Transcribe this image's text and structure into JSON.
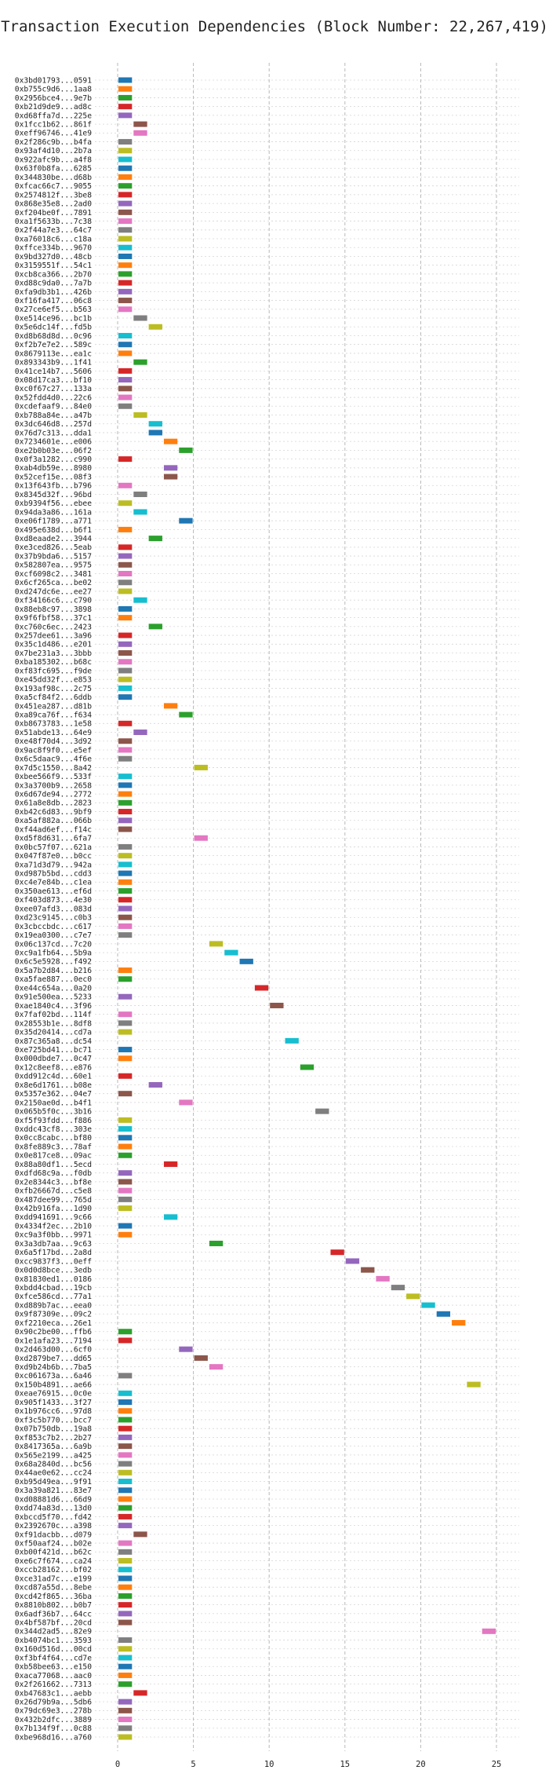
{
  "chart_data": {
    "type": "bar",
    "orientation": "horizontal-gantt",
    "title": "Transaction Execution Dependencies (Block Number: 22,267,419)",
    "xlabel": "",
    "ylabel": "",
    "xlim": [
      -1.5,
      26.5
    ],
    "x_ticks": [
      0,
      5,
      10,
      15,
      20,
      25
    ],
    "grid": true,
    "bar_width": 1,
    "transactions": [
      {
        "label": "0x3bd01793...0591",
        "start": 0,
        "color": "#1f77b4"
      },
      {
        "label": "0xb755c9d6...1aa8",
        "start": 0,
        "color": "#ff7f0e"
      },
      {
        "label": "0x2956bce4...9e7b",
        "start": 0,
        "color": "#2ca02c"
      },
      {
        "label": "0xb21d9de9...ad8c",
        "start": 0,
        "color": "#d62728"
      },
      {
        "label": "0xd68ffa7d...225e",
        "start": 0,
        "color": "#9467bd"
      },
      {
        "label": "0x1fcc1b62...861f",
        "start": 1,
        "color": "#8c564b"
      },
      {
        "label": "0xeff96746...41e9",
        "start": 1,
        "color": "#e377c2"
      },
      {
        "label": "0x2f286c9b...b4fa",
        "start": 0,
        "color": "#7f7f7f"
      },
      {
        "label": "0x93af4d10...2b7a",
        "start": 0,
        "color": "#bcbd22"
      },
      {
        "label": "0x922afc9b...a4f8",
        "start": 0,
        "color": "#17becf"
      },
      {
        "label": "0x63f0b8fa...6285",
        "start": 0,
        "color": "#1f77b4"
      },
      {
        "label": "0x344830be...d68b",
        "start": 0,
        "color": "#ff7f0e"
      },
      {
        "label": "0xfcac66c7...9055",
        "start": 0,
        "color": "#2ca02c"
      },
      {
        "label": "0x2574812f...3be8",
        "start": 0,
        "color": "#d62728"
      },
      {
        "label": "0x868e35e8...2ad0",
        "start": 0,
        "color": "#9467bd"
      },
      {
        "label": "0xf204be0f...7891",
        "start": 0,
        "color": "#8c564b"
      },
      {
        "label": "0xa1f5633b...7c38",
        "start": 0,
        "color": "#e377c2"
      },
      {
        "label": "0x2f44a7e3...64c7",
        "start": 0,
        "color": "#7f7f7f"
      },
      {
        "label": "0xa76018c6...c18a",
        "start": 0,
        "color": "#bcbd22"
      },
      {
        "label": "0xffce334b...9670",
        "start": 0,
        "color": "#17becf"
      },
      {
        "label": "0x9bd327d0...48cb",
        "start": 0,
        "color": "#1f77b4"
      },
      {
        "label": "0x3159551f...54c1",
        "start": 0,
        "color": "#ff7f0e"
      },
      {
        "label": "0xcb8ca366...2b70",
        "start": 0,
        "color": "#2ca02c"
      },
      {
        "label": "0xd88c9da0...7a7b",
        "start": 0,
        "color": "#d62728"
      },
      {
        "label": "0xfa9db3b1...426b",
        "start": 0,
        "color": "#9467bd"
      },
      {
        "label": "0xf16fa417...06c8",
        "start": 0,
        "color": "#8c564b"
      },
      {
        "label": "0x27ce6ef5...b563",
        "start": 0,
        "color": "#e377c2"
      },
      {
        "label": "0xe514ce96...bc1b",
        "start": 1,
        "color": "#7f7f7f"
      },
      {
        "label": "0x5e6dc14f...fd5b",
        "start": 2,
        "color": "#bcbd22"
      },
      {
        "label": "0xd8b68d8d...0c96",
        "start": 0,
        "color": "#17becf"
      },
      {
        "label": "0xf2b7e7e2...589c",
        "start": 0,
        "color": "#1f77b4"
      },
      {
        "label": "0x8679113e...ea1c",
        "start": 0,
        "color": "#ff7f0e"
      },
      {
        "label": "0x893343b9...1f41",
        "start": 1,
        "color": "#2ca02c"
      },
      {
        "label": "0x41ce14b7...5606",
        "start": 0,
        "color": "#d62728"
      },
      {
        "label": "0x08d17ca3...bf10",
        "start": 0,
        "color": "#9467bd"
      },
      {
        "label": "0xc0f67c27...133a",
        "start": 0,
        "color": "#8c564b"
      },
      {
        "label": "0x52fdd4d0...22c6",
        "start": 0,
        "color": "#e377c2"
      },
      {
        "label": "0xcdefaaf9...84e0",
        "start": 0,
        "color": "#7f7f7f"
      },
      {
        "label": "0xb788a84e...a47b",
        "start": 1,
        "color": "#bcbd22"
      },
      {
        "label": "0x3dc646d8...257d",
        "start": 2,
        "color": "#17becf"
      },
      {
        "label": "0x76d7c313...dda1",
        "start": 2,
        "color": "#1f77b4"
      },
      {
        "label": "0x7234601e...e006",
        "start": 3,
        "color": "#ff7f0e"
      },
      {
        "label": "0xe2b0b03e...06f2",
        "start": 4,
        "color": "#2ca02c"
      },
      {
        "label": "0x0f3a1282...c990",
        "start": 0,
        "color": "#d62728"
      },
      {
        "label": "0xab4db59e...8980",
        "start": 3,
        "color": "#9467bd"
      },
      {
        "label": "0x52cef15e...08f3",
        "start": 3,
        "color": "#8c564b"
      },
      {
        "label": "0x13f643fb...b796",
        "start": 0,
        "color": "#e377c2"
      },
      {
        "label": "0x8345d32f...96bd",
        "start": 1,
        "color": "#7f7f7f"
      },
      {
        "label": "0xb9394f56...ebee",
        "start": 0,
        "color": "#bcbd22"
      },
      {
        "label": "0x94da3a86...161a",
        "start": 1,
        "color": "#17becf"
      },
      {
        "label": "0xe06f1789...a771",
        "start": 4,
        "color": "#1f77b4"
      },
      {
        "label": "0x495e638d...b6f1",
        "start": 0,
        "color": "#ff7f0e"
      },
      {
        "label": "0xd8eaade2...3944",
        "start": 2,
        "color": "#2ca02c"
      },
      {
        "label": "0xe3ced826...5eab",
        "start": 0,
        "color": "#d62728"
      },
      {
        "label": "0x37b9bda6...5157",
        "start": 0,
        "color": "#9467bd"
      },
      {
        "label": "0x582807ea...9575",
        "start": 0,
        "color": "#8c564b"
      },
      {
        "label": "0xcf6098c2...3481",
        "start": 0,
        "color": "#e377c2"
      },
      {
        "label": "0x6cf265ca...be02",
        "start": 0,
        "color": "#7f7f7f"
      },
      {
        "label": "0xd247dc6e...ee27",
        "start": 0,
        "color": "#bcbd22"
      },
      {
        "label": "0xf34166c6...c790",
        "start": 1,
        "color": "#17becf"
      },
      {
        "label": "0x88eb8c97...3898",
        "start": 0,
        "color": "#1f77b4"
      },
      {
        "label": "0x9f6fbf58...37c1",
        "start": 0,
        "color": "#ff7f0e"
      },
      {
        "label": "0xc760c6ec...2423",
        "start": 2,
        "color": "#2ca02c"
      },
      {
        "label": "0x257dee61...3a96",
        "start": 0,
        "color": "#d62728"
      },
      {
        "label": "0x35c1d486...e201",
        "start": 0,
        "color": "#9467bd"
      },
      {
        "label": "0x7be231a3...3bbb",
        "start": 0,
        "color": "#8c564b"
      },
      {
        "label": "0xba185302...b68c",
        "start": 0,
        "color": "#e377c2"
      },
      {
        "label": "0xf83fc695...f9de",
        "start": 0,
        "color": "#7f7f7f"
      },
      {
        "label": "0xe45dd32f...e853",
        "start": 0,
        "color": "#bcbd22"
      },
      {
        "label": "0x193af98c...2c75",
        "start": 0,
        "color": "#17becf"
      },
      {
        "label": "0xa5cf84f2...6ddb",
        "start": 0,
        "color": "#1f77b4"
      },
      {
        "label": "0x451ea287...d81b",
        "start": 3,
        "color": "#ff7f0e"
      },
      {
        "label": "0xa89ca76f...f634",
        "start": 4,
        "color": "#2ca02c"
      },
      {
        "label": "0xb8673783...1e58",
        "start": 0,
        "color": "#d62728"
      },
      {
        "label": "0x51abde13...64e9",
        "start": 1,
        "color": "#9467bd"
      },
      {
        "label": "0xe48f70d4...3d92",
        "start": 0,
        "color": "#8c564b"
      },
      {
        "label": "0x9ac8f9f0...e5ef",
        "start": 0,
        "color": "#e377c2"
      },
      {
        "label": "0x6c5daac9...4f6e",
        "start": 0,
        "color": "#7f7f7f"
      },
      {
        "label": "0x7d5c1550...8a42",
        "start": 5,
        "color": "#bcbd22"
      },
      {
        "label": "0xbee566f9...533f",
        "start": 0,
        "color": "#17becf"
      },
      {
        "label": "0x3a3700b9...2658",
        "start": 0,
        "color": "#1f77b4"
      },
      {
        "label": "0x6d67de94...2772",
        "start": 0,
        "color": "#ff7f0e"
      },
      {
        "label": "0x61a8e8db...2823",
        "start": 0,
        "color": "#2ca02c"
      },
      {
        "label": "0xb42c6d83...9bf9",
        "start": 0,
        "color": "#d62728"
      },
      {
        "label": "0xa5af882a...066b",
        "start": 0,
        "color": "#9467bd"
      },
      {
        "label": "0xf44ad6ef...f14c",
        "start": 0,
        "color": "#8c564b"
      },
      {
        "label": "0xd5f8d631...6fa7",
        "start": 5,
        "color": "#e377c2"
      },
      {
        "label": "0x0bc57f07...621a",
        "start": 0,
        "color": "#7f7f7f"
      },
      {
        "label": "0x047f87e0...b0cc",
        "start": 0,
        "color": "#bcbd22"
      },
      {
        "label": "0xa71d3d79...942a",
        "start": 0,
        "color": "#17becf"
      },
      {
        "label": "0xd987b5bd...cdd3",
        "start": 0,
        "color": "#1f77b4"
      },
      {
        "label": "0xc4e7e84b...c1ea",
        "start": 0,
        "color": "#ff7f0e"
      },
      {
        "label": "0x350ae613...ef6d",
        "start": 0,
        "color": "#2ca02c"
      },
      {
        "label": "0xf403d873...4e30",
        "start": 0,
        "color": "#d62728"
      },
      {
        "label": "0xee07afd3...083d",
        "start": 0,
        "color": "#9467bd"
      },
      {
        "label": "0xd23c9145...c0b3",
        "start": 0,
        "color": "#8c564b"
      },
      {
        "label": "0x3cbccbdc...c617",
        "start": 0,
        "color": "#e377c2"
      },
      {
        "label": "0x19ea0300...c7e7",
        "start": 0,
        "color": "#7f7f7f"
      },
      {
        "label": "0x06c137cd...7c20",
        "start": 6,
        "color": "#bcbd22"
      },
      {
        "label": "0xc9a1fb64...5b9a",
        "start": 7,
        "color": "#17becf"
      },
      {
        "label": "0x6c5e5928...f492",
        "start": 8,
        "color": "#1f77b4"
      },
      {
        "label": "0x5a7b2d84...b216",
        "start": 0,
        "color": "#ff7f0e"
      },
      {
        "label": "0xa5fae887...0ec0",
        "start": 0,
        "color": "#2ca02c"
      },
      {
        "label": "0xe44c654a...0a20",
        "start": 9,
        "color": "#d62728"
      },
      {
        "label": "0x91e500ea...5233",
        "start": 0,
        "color": "#9467bd"
      },
      {
        "label": "0xae1840c4...3f96",
        "start": 10,
        "color": "#8c564b"
      },
      {
        "label": "0x7faf02bd...114f",
        "start": 0,
        "color": "#e377c2"
      },
      {
        "label": "0x28553b1e...8df8",
        "start": 0,
        "color": "#7f7f7f"
      },
      {
        "label": "0x35d20414...cd7a",
        "start": 0,
        "color": "#bcbd22"
      },
      {
        "label": "0x87c365a8...dc54",
        "start": 11,
        "color": "#17becf"
      },
      {
        "label": "0xe725bd41...bc71",
        "start": 0,
        "color": "#1f77b4"
      },
      {
        "label": "0x000dbde7...0c47",
        "start": 0,
        "color": "#ff7f0e"
      },
      {
        "label": "0x12c8eef8...e876",
        "start": 12,
        "color": "#2ca02c"
      },
      {
        "label": "0xdd912c4d...60e1",
        "start": 0,
        "color": "#d62728"
      },
      {
        "label": "0x8e6d1761...b08e",
        "start": 2,
        "color": "#9467bd"
      },
      {
        "label": "0x5357e362...04e7",
        "start": 0,
        "color": "#8c564b"
      },
      {
        "label": "0x2150ae0d...b4f1",
        "start": 4,
        "color": "#e377c2"
      },
      {
        "label": "0x065b5f0c...3b16",
        "start": 13,
        "color": "#7f7f7f"
      },
      {
        "label": "0xf5f93fdd...f886",
        "start": 0,
        "color": "#bcbd22"
      },
      {
        "label": "0xddc43cf8...303e",
        "start": 0,
        "color": "#17becf"
      },
      {
        "label": "0x0cc8cabc...bf80",
        "start": 0,
        "color": "#1f77b4"
      },
      {
        "label": "0x8fe889c3...78af",
        "start": 0,
        "color": "#ff7f0e"
      },
      {
        "label": "0x0e817ce8...09ac",
        "start": 0,
        "color": "#2ca02c"
      },
      {
        "label": "0x88a80df1...5ecd",
        "start": 3,
        "color": "#d62728"
      },
      {
        "label": "0xdfd68c9a...f0db",
        "start": 0,
        "color": "#9467bd"
      },
      {
        "label": "0x2e8344c3...bf8e",
        "start": 0,
        "color": "#8c564b"
      },
      {
        "label": "0xfb26667d...c5e8",
        "start": 0,
        "color": "#e377c2"
      },
      {
        "label": "0x487dee99...765d",
        "start": 0,
        "color": "#7f7f7f"
      },
      {
        "label": "0x42b916fa...1d90",
        "start": 0,
        "color": "#bcbd22"
      },
      {
        "label": "0xdd941691...9c66",
        "start": 3,
        "color": "#17becf"
      },
      {
        "label": "0x4334f2ec...2b10",
        "start": 0,
        "color": "#1f77b4"
      },
      {
        "label": "0xc9a3f0bb...9971",
        "start": 0,
        "color": "#ff7f0e"
      },
      {
        "label": "0x3a3db7aa...9c63",
        "start": 6,
        "color": "#2ca02c"
      },
      {
        "label": "0x6a5f17bd...2a8d",
        "start": 14,
        "color": "#d62728"
      },
      {
        "label": "0xcc9837f3...0eff",
        "start": 15,
        "color": "#9467bd"
      },
      {
        "label": "0x0d0d8bce...3edb",
        "start": 16,
        "color": "#8c564b"
      },
      {
        "label": "0x81830ed1...0186",
        "start": 17,
        "color": "#e377c2"
      },
      {
        "label": "0xbdd4cbad...19cb",
        "start": 18,
        "color": "#7f7f7f"
      },
      {
        "label": "0xfce586cd...77a1",
        "start": 19,
        "color": "#bcbd22"
      },
      {
        "label": "0xd889b7ac...eea0",
        "start": 20,
        "color": "#17becf"
      },
      {
        "label": "0x9f87309e...09c2",
        "start": 21,
        "color": "#1f77b4"
      },
      {
        "label": "0xf2210eca...26e1",
        "start": 22,
        "color": "#ff7f0e"
      },
      {
        "label": "0x90c2be00...ffb6",
        "start": 0,
        "color": "#2ca02c"
      },
      {
        "label": "0x1e1afa23...7194",
        "start": 0,
        "color": "#d62728"
      },
      {
        "label": "0x2d463d00...6cf0",
        "start": 4,
        "color": "#9467bd"
      },
      {
        "label": "0xd2879be7...dd65",
        "start": 5,
        "color": "#8c564b"
      },
      {
        "label": "0xd9b24b6b...7ba5",
        "start": 6,
        "color": "#e377c2"
      },
      {
        "label": "0xc061673a...6a46",
        "start": 0,
        "color": "#7f7f7f"
      },
      {
        "label": "0x150b4891...ae66",
        "start": 23,
        "color": "#bcbd22"
      },
      {
        "label": "0xeae76915...0c0e",
        "start": 0,
        "color": "#17becf"
      },
      {
        "label": "0x905f1433...3f27",
        "start": 0,
        "color": "#1f77b4"
      },
      {
        "label": "0x1b976cc6...97d8",
        "start": 0,
        "color": "#ff7f0e"
      },
      {
        "label": "0xf3c5b770...bcc7",
        "start": 0,
        "color": "#2ca02c"
      },
      {
        "label": "0x07b750db...19a8",
        "start": 0,
        "color": "#d62728"
      },
      {
        "label": "0xf853c7b2...2b27",
        "start": 0,
        "color": "#9467bd"
      },
      {
        "label": "0x8417365a...6a9b",
        "start": 0,
        "color": "#8c564b"
      },
      {
        "label": "0x565e2199...a425",
        "start": 0,
        "color": "#e377c2"
      },
      {
        "label": "0x68a2840d...bc56",
        "start": 0,
        "color": "#7f7f7f"
      },
      {
        "label": "0x44ae0e62...cc24",
        "start": 0,
        "color": "#bcbd22"
      },
      {
        "label": "0xb95d49ea...9f91",
        "start": 0,
        "color": "#17becf"
      },
      {
        "label": "0x3a39a821...83e7",
        "start": 0,
        "color": "#1f77b4"
      },
      {
        "label": "0xd08881d6...66d9",
        "start": 0,
        "color": "#ff7f0e"
      },
      {
        "label": "0xdd74a83d...13d0",
        "start": 0,
        "color": "#2ca02c"
      },
      {
        "label": "0xbccd5f70...fd42",
        "start": 0,
        "color": "#d62728"
      },
      {
        "label": "0x2392670c...a398",
        "start": 0,
        "color": "#9467bd"
      },
      {
        "label": "0xf91dacbb...d079",
        "start": 1,
        "color": "#8c564b"
      },
      {
        "label": "0xf50aaf24...b02e",
        "start": 0,
        "color": "#e377c2"
      },
      {
        "label": "0xb00f421d...b62c",
        "start": 0,
        "color": "#7f7f7f"
      },
      {
        "label": "0xe6c7f674...ca24",
        "start": 0,
        "color": "#bcbd22"
      },
      {
        "label": "0xccb28162...bf02",
        "start": 0,
        "color": "#17becf"
      },
      {
        "label": "0xce31ad7c...e199",
        "start": 0,
        "color": "#1f77b4"
      },
      {
        "label": "0xcd87a55d...8ebe",
        "start": 0,
        "color": "#ff7f0e"
      },
      {
        "label": "0xcd42f865...36ba",
        "start": 0,
        "color": "#2ca02c"
      },
      {
        "label": "0x8810b802...b0b7",
        "start": 0,
        "color": "#d62728"
      },
      {
        "label": "0x6adf36b7...64cc",
        "start": 0,
        "color": "#9467bd"
      },
      {
        "label": "0x4bf587bf...20cd",
        "start": 0,
        "color": "#8c564b"
      },
      {
        "label": "0x344d2ad5...82e9",
        "start": 24,
        "color": "#e377c2"
      },
      {
        "label": "0xb4074bc1...3593",
        "start": 0,
        "color": "#7f7f7f"
      },
      {
        "label": "0x160d516d...00cd",
        "start": 0,
        "color": "#bcbd22"
      },
      {
        "label": "0xf3bf4f64...cd7e",
        "start": 0,
        "color": "#17becf"
      },
      {
        "label": "0xb58bee63...e150",
        "start": 0,
        "color": "#1f77b4"
      },
      {
        "label": "0xaca77068...aac0",
        "start": 0,
        "color": "#ff7f0e"
      },
      {
        "label": "0x2f261662...7313",
        "start": 0,
        "color": "#2ca02c"
      },
      {
        "label": "0xb47683c1...aebb",
        "start": 1,
        "color": "#d62728"
      },
      {
        "label": "0x26d79b9a...5db6",
        "start": 0,
        "color": "#9467bd"
      },
      {
        "label": "0x79dc69e3...278b",
        "start": 0,
        "color": "#8c564b"
      },
      {
        "label": "0x432b2dfc...3889",
        "start": 0,
        "color": "#e377c2"
      },
      {
        "label": "0x7b134f9f...0c88",
        "start": 0,
        "color": "#7f7f7f"
      },
      {
        "label": "0xbe968d16...a760",
        "start": 0,
        "color": "#bcbd22"
      }
    ]
  }
}
